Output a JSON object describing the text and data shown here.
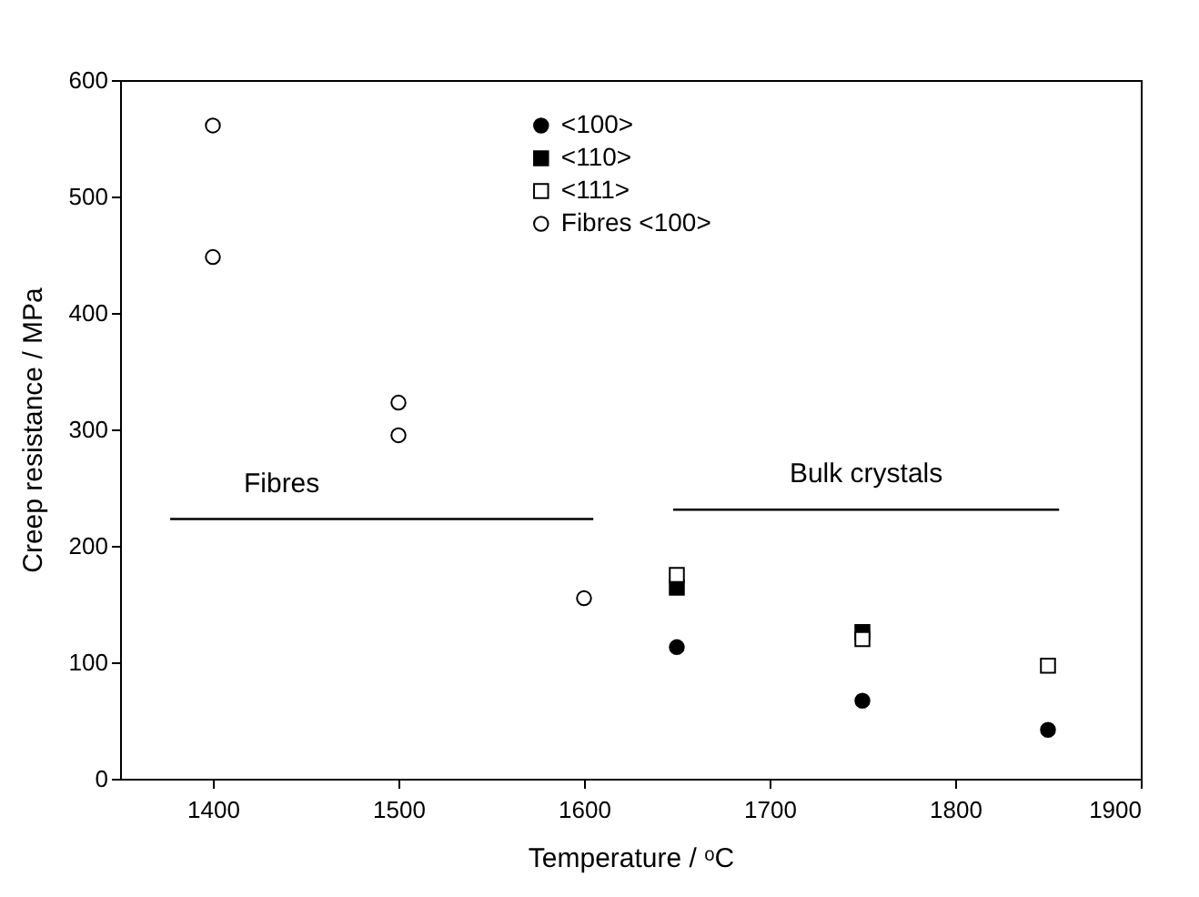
{
  "chart_data": {
    "type": "scatter",
    "xlabel": "Temperature / ᵒC",
    "ylabel": "Creep resistance / MPa",
    "xlim": [
      1350,
      1900
    ],
    "xticks": [
      1400,
      1500,
      1600,
      1700,
      1800,
      1900
    ],
    "ylim": [
      0,
      600
    ],
    "yticks": [
      0,
      100,
      200,
      300,
      400,
      500,
      600
    ],
    "legend": "top",
    "grid": false,
    "series": [
      {
        "name": "<100>",
        "color": "#000000",
        "marker": "circle",
        "x": [
          1650,
          1750,
          1850
        ],
        "values": [
          113,
          67,
          42
        ]
      },
      {
        "name": "<110>",
        "color": "#000000",
        "marker": "square",
        "x": [
          1650,
          1750
        ],
        "values": [
          164,
          126
        ]
      },
      {
        "name": "<111>",
        "color": "#ffffff",
        "marker": "square",
        "x": [
          1650,
          1750,
          1850
        ],
        "values": [
          175,
          120,
          97
        ]
      },
      {
        "name": "Fibres <100>",
        "color": "#ffffff",
        "marker": "circle",
        "x": [
          1400,
          1400,
          1500,
          1500,
          1600
        ],
        "values": [
          561,
          448,
          323,
          295,
          155
        ]
      },
      {
        "type": "line",
        "color": "#000000",
        "marker": "none",
        "x": [
          1377,
          1605
        ],
        "values": [
          223,
          223
        ]
      },
      {
        "type": "line",
        "color": "#000000",
        "marker": "none",
        "x": [
          1648,
          1856
        ],
        "values": [
          231,
          231
        ]
      }
    ],
    "annotations": [
      "Fibres",
      "Bulk crystals"
    ]
  }
}
